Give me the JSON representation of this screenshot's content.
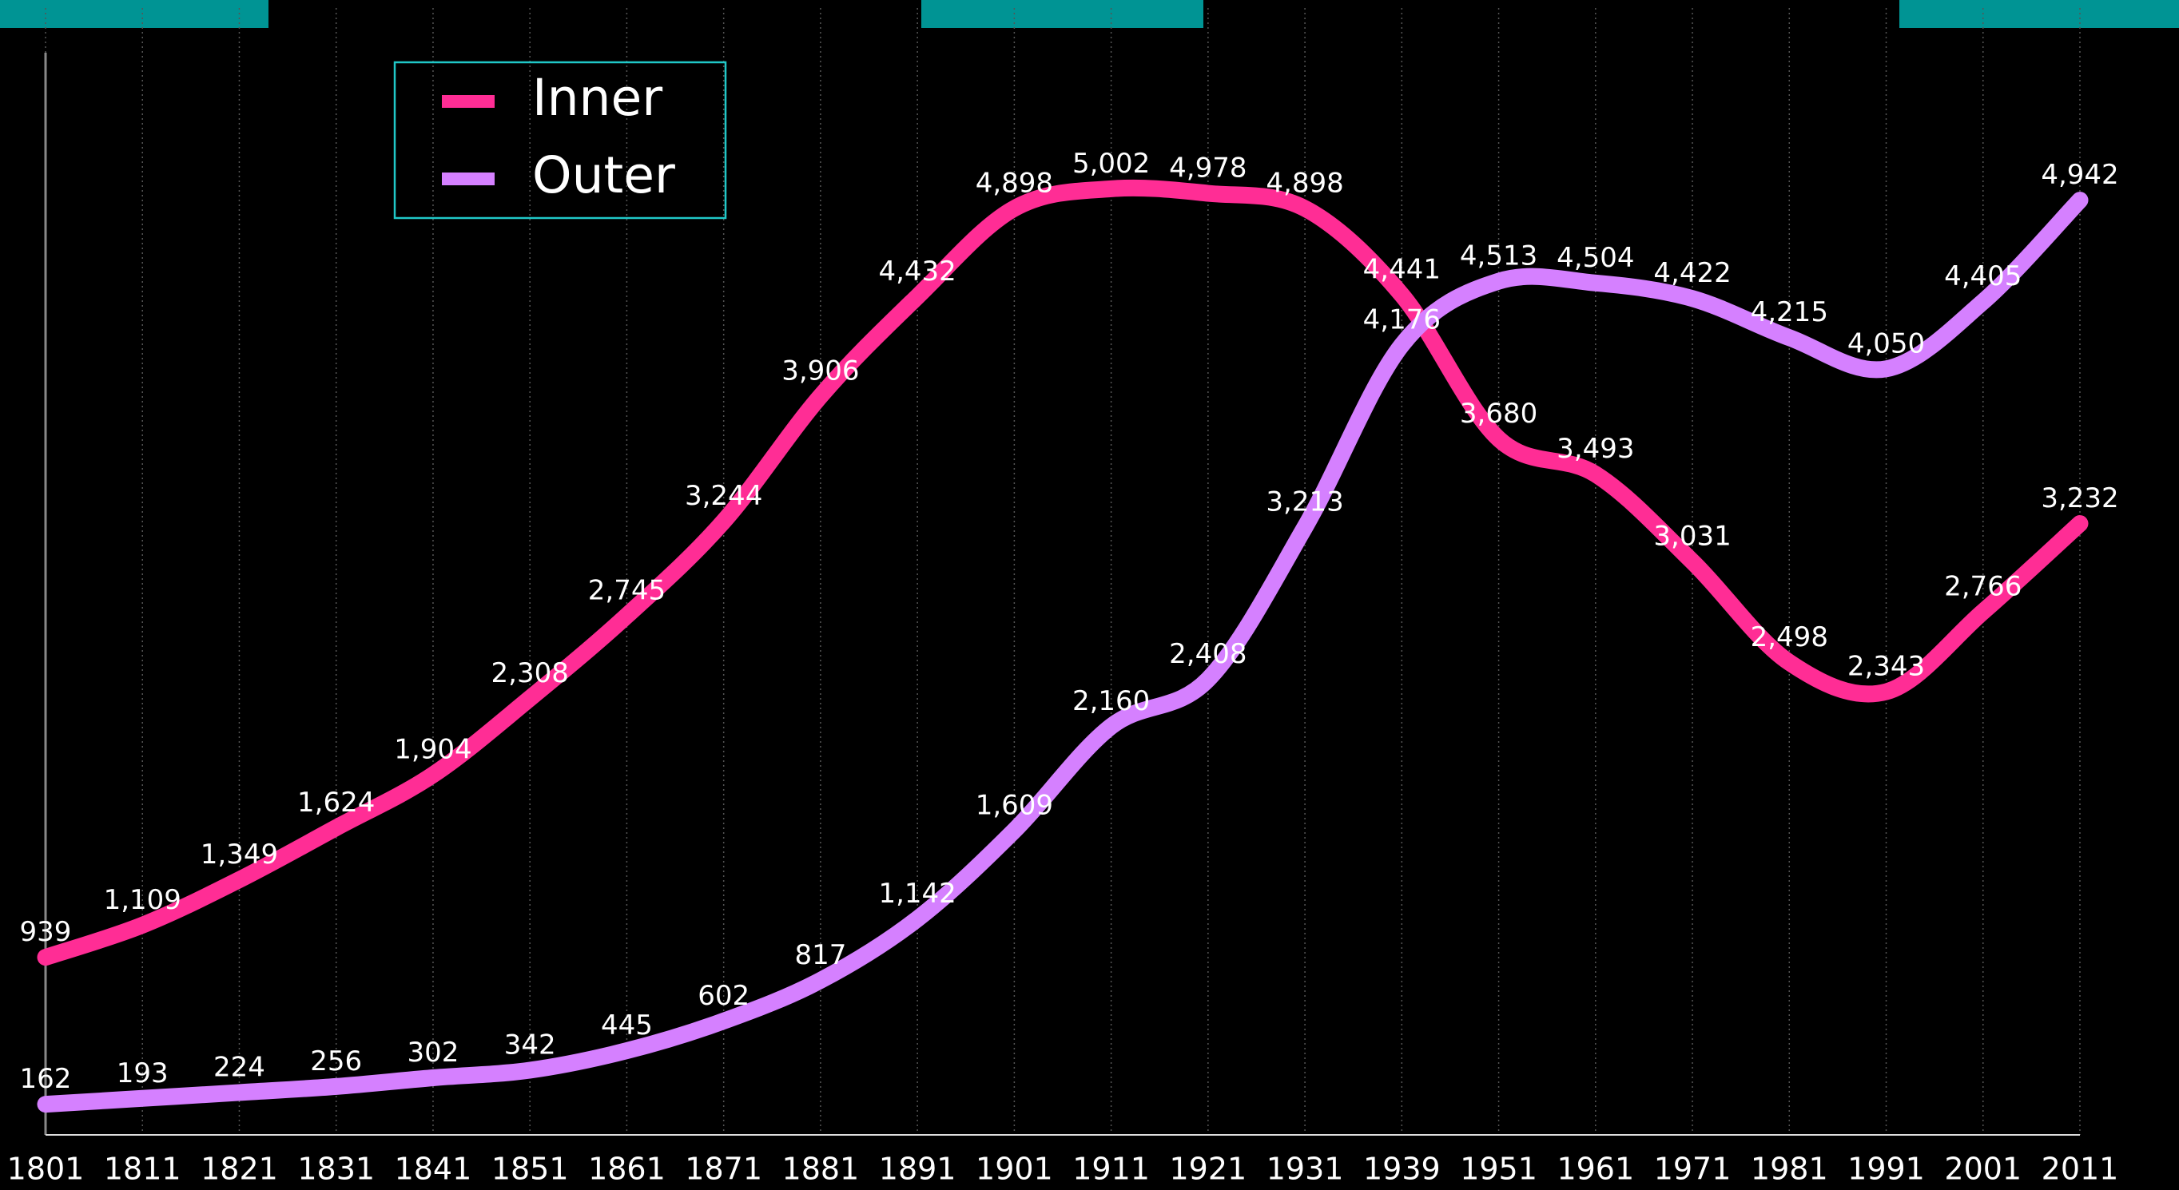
{
  "chart_data": {
    "type": "line",
    "categories": [
      "1801",
      "1811",
      "1821",
      "1831",
      "1841",
      "1851",
      "1861",
      "1871",
      "1881",
      "1891",
      "1901",
      "1911",
      "1921",
      "1931",
      "1939",
      "1951",
      "1961",
      "1971",
      "1981",
      "1991",
      "2001",
      "2011"
    ],
    "series": [
      {
        "name": "Inner",
        "color": "#ff2d95",
        "values": [
          939,
          1109,
          1349,
          1624,
          1904,
          2308,
          2745,
          3244,
          3906,
          4432,
          4898,
          5002,
          4978,
          4898,
          4441,
          3680,
          3493,
          3031,
          2498,
          2343,
          2766,
          3232
        ],
        "value_labels": [
          "939",
          "1,109",
          "1,349",
          "1,624",
          "1,904",
          "2,308",
          "2,745",
          "3,244",
          "3,906",
          "4,432",
          "4,898",
          "5,002",
          "4,978",
          "4,898",
          "4,441",
          "3,680",
          "3,493",
          "3,031",
          "2,498",
          "2,343",
          "2,766",
          "3,232"
        ]
      },
      {
        "name": "Outer",
        "color": "#d580ff",
        "values": [
          162,
          193,
          224,
          256,
          302,
          342,
          445,
          602,
          817,
          1142,
          1609,
          2160,
          2408,
          3213,
          4176,
          4513,
          4504,
          4422,
          4215,
          4050,
          4405,
          4942
        ],
        "value_labels": [
          "162",
          "193",
          "224",
          "256",
          "302",
          "342",
          "445",
          "602",
          "817",
          "1,142",
          "1,609",
          "2,160",
          "2,408",
          "3,213",
          "4,176",
          "4,513",
          "4,504",
          "4,422",
          "4,215",
          "4,050",
          "4,405",
          "4,942"
        ]
      }
    ],
    "ylim": [
      0,
      6000
    ],
    "grid": true,
    "legend": "upper left"
  }
}
